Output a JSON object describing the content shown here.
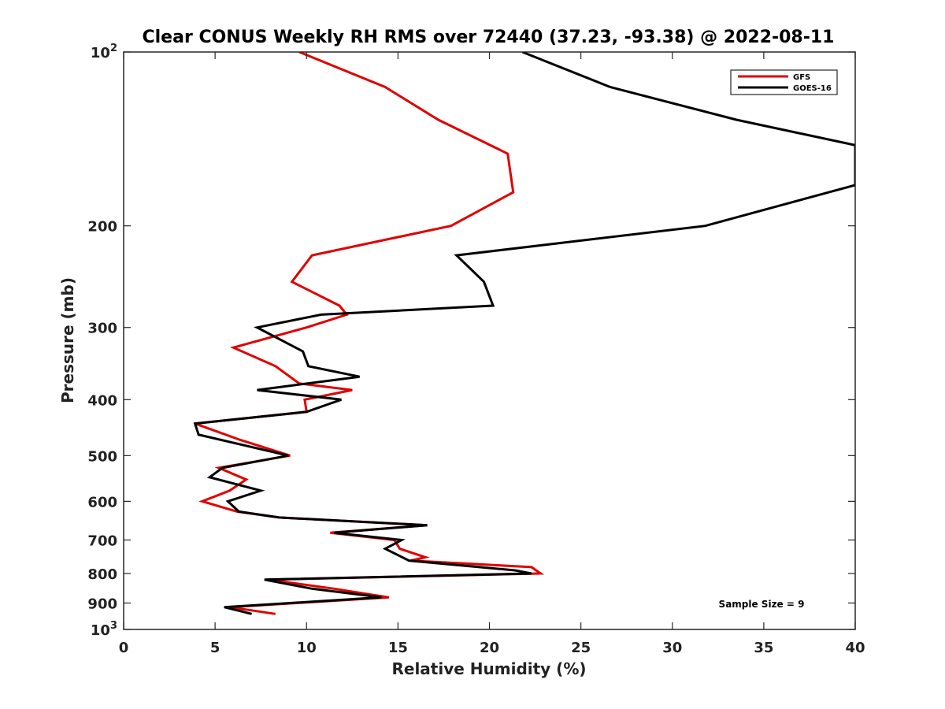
{
  "chart_data": {
    "type": "line",
    "title": "Clear CONUS Weekly RH RMS over 72440 (37.23, -93.38) @ 2022-08-11",
    "xlabel": "Relative Humidity (%)",
    "ylabel": "Pressure (mb)",
    "xlim": [
      0,
      40
    ],
    "ylim": [
      1000,
      100
    ],
    "y_scale": "log",
    "y_reversed": true,
    "x_ticks": [
      "0",
      "5",
      "10",
      "15",
      "20",
      "25",
      "30",
      "35",
      "40"
    ],
    "y_ticks": [
      {
        "value": 100,
        "base": "10",
        "exp": "2"
      },
      {
        "value": 200,
        "label": "200"
      },
      {
        "value": 300,
        "label": "300"
      },
      {
        "value": 400,
        "label": "400"
      },
      {
        "value": 500,
        "label": "500"
      },
      {
        "value": 600,
        "label": "600"
      },
      {
        "value": 700,
        "label": "700"
      },
      {
        "value": 800,
        "label": "800"
      },
      {
        "value": 900,
        "label": "900"
      },
      {
        "value": 1000,
        "base": "10",
        "exp": "3"
      }
    ],
    "grid": false,
    "legend_position": "top-right",
    "annotation": "Sample Size = 9",
    "series": [
      {
        "name": "GFS",
        "color": "#e00000",
        "points": [
          [
            9.6,
            100
          ],
          [
            14.3,
            115
          ],
          [
            17.2,
            131
          ],
          [
            21.0,
            150
          ],
          [
            21.3,
            175
          ],
          [
            17.9,
            200
          ],
          [
            10.3,
            225
          ],
          [
            9.2,
            250
          ],
          [
            11.8,
            275
          ],
          [
            12.2,
            285
          ],
          [
            10.0,
            300
          ],
          [
            6.0,
            325
          ],
          [
            8.3,
            350
          ],
          [
            9.6,
            375
          ],
          [
            12.5,
            385
          ],
          [
            9.9,
            400
          ],
          [
            10.0,
            420
          ],
          [
            3.9,
            440
          ],
          [
            6.4,
            470
          ],
          [
            9.1,
            500
          ],
          [
            5.2,
            525
          ],
          [
            6.7,
            550
          ],
          [
            5.8,
            575
          ],
          [
            4.3,
            600
          ],
          [
            6.2,
            625
          ],
          [
            8.5,
            640
          ],
          [
            16.6,
            660
          ],
          [
            11.3,
            680
          ],
          [
            14.8,
            700
          ],
          [
            15.1,
            725
          ],
          [
            16.5,
            750
          ],
          [
            15.7,
            760
          ],
          [
            22.3,
            780
          ],
          [
            22.8,
            800
          ],
          [
            7.9,
            820
          ],
          [
            11.5,
            850
          ],
          [
            14.5,
            880
          ],
          [
            5.8,
            915
          ],
          [
            8.3,
            940
          ]
        ]
      },
      {
        "name": "GOES-16",
        "color": "#000000",
        "points": [
          [
            21.8,
            100
          ],
          [
            26.6,
            115
          ],
          [
            33.5,
            131
          ],
          [
            40.0,
            145
          ],
          [
            40.0,
            170
          ],
          [
            31.8,
            200
          ],
          [
            18.2,
            225
          ],
          [
            19.7,
            250
          ],
          [
            20.2,
            275
          ],
          [
            10.8,
            285
          ],
          [
            7.3,
            300
          ],
          [
            9.8,
            330
          ],
          [
            10.1,
            350
          ],
          [
            12.9,
            365
          ],
          [
            7.3,
            385
          ],
          [
            11.9,
            400
          ],
          [
            10.0,
            420
          ],
          [
            3.9,
            440
          ],
          [
            4.1,
            460
          ],
          [
            9.0,
            500
          ],
          [
            5.4,
            525
          ],
          [
            4.7,
            545
          ],
          [
            7.5,
            575
          ],
          [
            5.7,
            600
          ],
          [
            6.3,
            625
          ],
          [
            8.5,
            640
          ],
          [
            16.6,
            660
          ],
          [
            11.5,
            680
          ],
          [
            15.2,
            700
          ],
          [
            14.3,
            725
          ],
          [
            15.6,
            760
          ],
          [
            21.4,
            790
          ],
          [
            22.3,
            800
          ],
          [
            7.7,
            820
          ],
          [
            10.3,
            850
          ],
          [
            14.1,
            880
          ],
          [
            5.5,
            915
          ],
          [
            7.0,
            940
          ]
        ]
      }
    ]
  }
}
